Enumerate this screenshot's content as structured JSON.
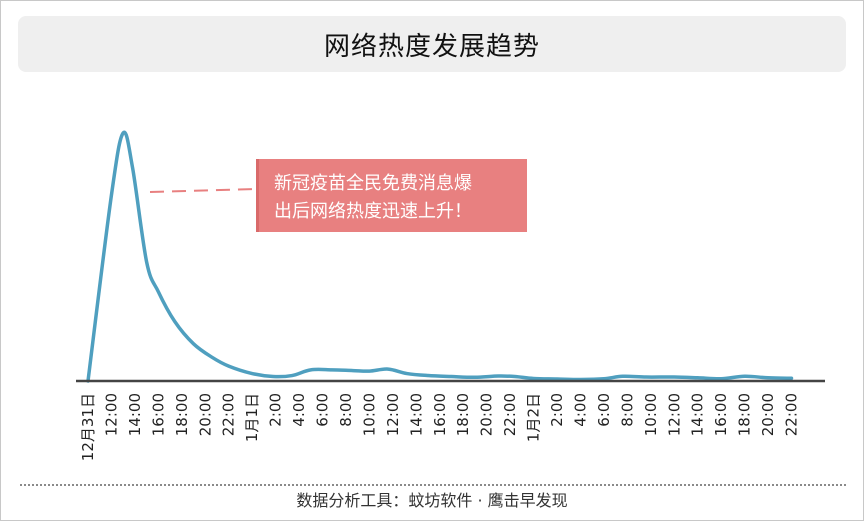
{
  "title": "网络热度发展趋势",
  "footer": "数据分析工具：蚊坊软件 · 鹰击早发现",
  "chart_data": {
    "type": "line",
    "title": "网络热度发展趋势",
    "xlabel": "",
    "ylabel": "",
    "grid": false,
    "legend": "none",
    "line_color": "#4f9fbf",
    "categories": [
      "12月31日",
      "12:00",
      "14:00",
      "16:00",
      "18:00",
      "20:00",
      "22:00",
      "1月1日",
      "2:00",
      "4:00",
      "6:00",
      "8:00",
      "10:00",
      "12:00",
      "14:00",
      "16:00",
      "18:00",
      "20:00",
      "22:00",
      "1月2日",
      "2:00",
      "4:00",
      "6:00",
      "8:00",
      "10:00",
      "12:00",
      "14:00",
      "16:00",
      "18:00",
      "20:00",
      "22:00"
    ],
    "series": [
      {
        "points": [
          [
            0,
            0
          ],
          [
            1.0,
            75
          ],
          [
            1.5,
            100
          ],
          [
            1.9,
            86
          ],
          [
            2.5,
            48
          ],
          [
            3.0,
            36
          ],
          [
            3.7,
            24
          ],
          [
            4.5,
            15
          ],
          [
            5.3,
            9.5
          ],
          [
            6.0,
            6.0
          ],
          [
            7.0,
            3.0
          ],
          [
            7.9,
            1.8
          ],
          [
            8.7,
            2.2
          ],
          [
            9.5,
            4.5
          ],
          [
            10.4,
            4.5
          ],
          [
            11.3,
            4.2
          ],
          [
            12.0,
            4.0
          ],
          [
            12.8,
            4.8
          ],
          [
            13.6,
            3.0
          ],
          [
            14.5,
            2.2
          ],
          [
            15.5,
            1.8
          ],
          [
            16.5,
            1.5
          ],
          [
            17.5,
            2.0
          ],
          [
            18.2,
            1.8
          ],
          [
            19.0,
            1.0
          ],
          [
            20.0,
            0.8
          ],
          [
            21.0,
            0.6
          ],
          [
            22.0,
            0.9
          ],
          [
            22.8,
            1.9
          ],
          [
            23.8,
            1.6
          ],
          [
            25.0,
            1.6
          ],
          [
            26.0,
            1.3
          ],
          [
            27.0,
            0.9
          ],
          [
            28.0,
            1.9
          ],
          [
            29.0,
            1.3
          ],
          [
            30.0,
            1.1
          ]
        ]
      }
    ],
    "annotation": {
      "text_lines": [
        "新冠疫苗全民免费消息爆",
        "出后网络热度迅速上升！"
      ],
      "color": "#e88080"
    }
  }
}
